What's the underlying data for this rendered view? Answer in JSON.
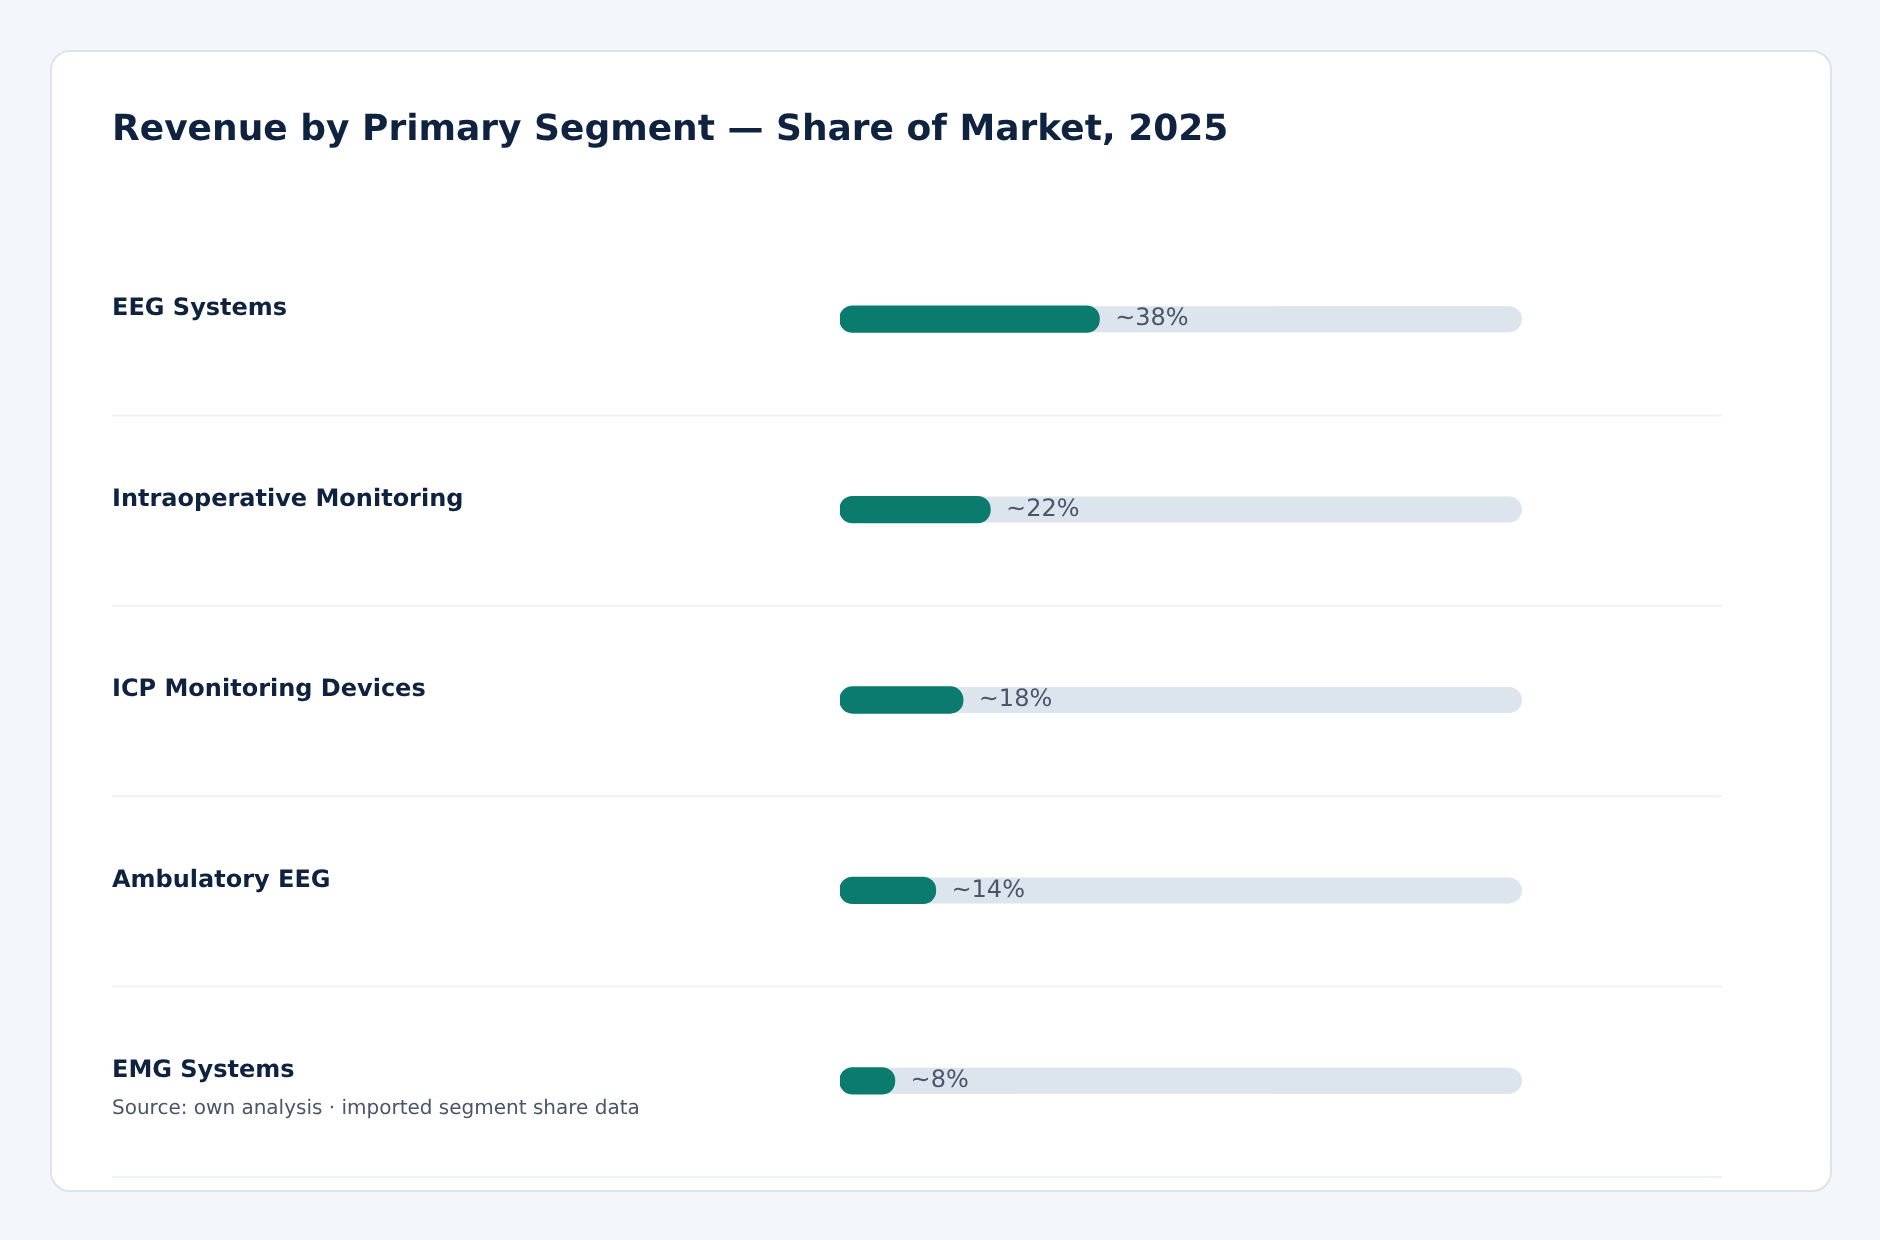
{
  "chart_data": {
    "type": "bar",
    "orientation": "horizontal",
    "title": "Revenue by Primary Segment — Share of Market, 2025",
    "categories": [
      "EEG Systems",
      "Intraoperative Monitoring",
      "ICP Monitoring Devices",
      "Ambulatory EEG",
      "EMG Systems"
    ],
    "values": [
      38,
      22,
      18,
      14,
      8
    ],
    "value_labels": [
      "~38%",
      "~22%",
      "~18%",
      "~14%",
      "~8%"
    ],
    "color": "#0b7b6e",
    "annotations": [
      "Source: own analysis · imported segment share data"
    ]
  }
}
